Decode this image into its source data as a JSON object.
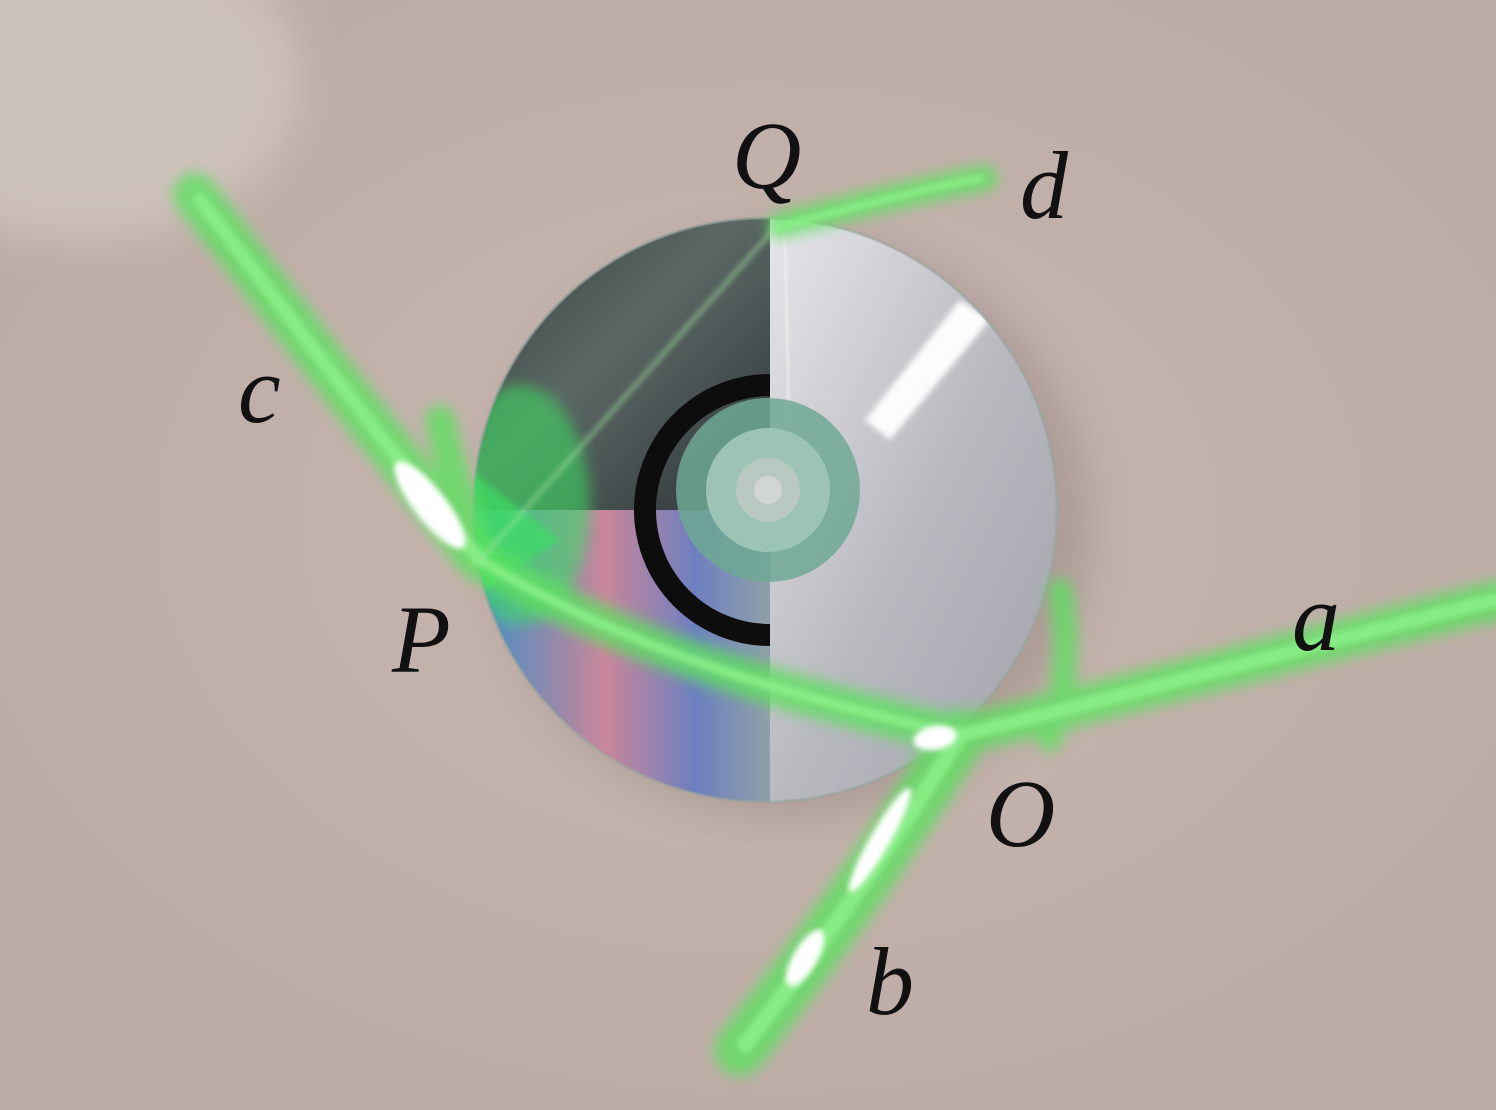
{
  "labels": {
    "Q": "Q",
    "d": "d",
    "c": "c",
    "P": "P",
    "a": "a",
    "O": "O",
    "b": "b"
  },
  "colors": {
    "background": "#c4b3ad",
    "laser": "#5fe060",
    "disc_silver": "#c8c8cc",
    "disc_dark": "#3a3f44",
    "label_text": "#111111"
  }
}
